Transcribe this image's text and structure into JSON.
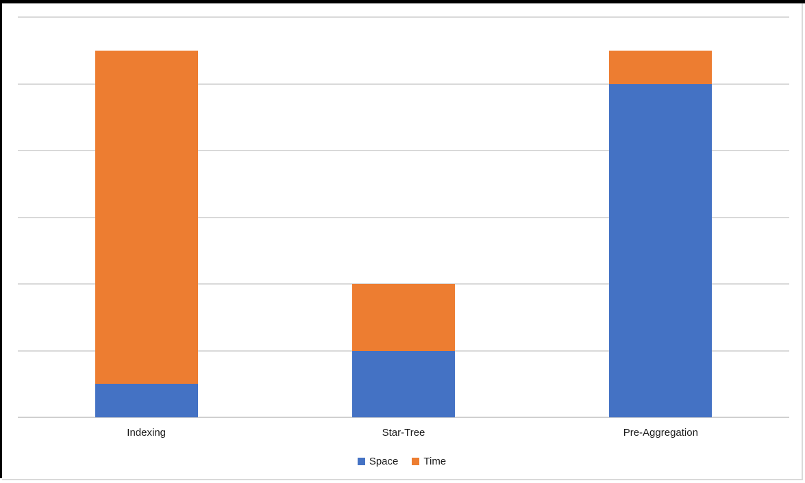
{
  "chart_data": {
    "type": "bar",
    "subtype": "stacked-vertical",
    "title": "",
    "xlabel": "",
    "ylabel": "",
    "categories": [
      "Indexing",
      "Star-Tree",
      "Pre-Aggregation"
    ],
    "series": [
      {
        "name": "Space",
        "color": "#4472C4",
        "values": [
          0.5,
          1,
          5
        ]
      },
      {
        "name": "Time",
        "color": "#ED7D31",
        "values": [
          5,
          1,
          0.5
        ]
      }
    ],
    "ylim": [
      0,
      6
    ],
    "y_tick_labels_visible": false,
    "gridlines": "horizontal",
    "gridline_interval": 1,
    "legend_position": "bottom-center",
    "note_units": "relative units; no numeric axis labels shown in chart"
  },
  "legend": {
    "items": [
      {
        "label": "Space",
        "color": "#4472C4"
      },
      {
        "label": "Time",
        "color": "#ED7D31"
      }
    ]
  },
  "colors": {
    "series_space": "#4472C4",
    "series_time": "#ED7D31",
    "gridline": "#D9D9D9",
    "axis_line": "#CFCFCF",
    "frame": "#000000",
    "background": "#FFFFFF",
    "label_text": "#1A1A1A"
  }
}
